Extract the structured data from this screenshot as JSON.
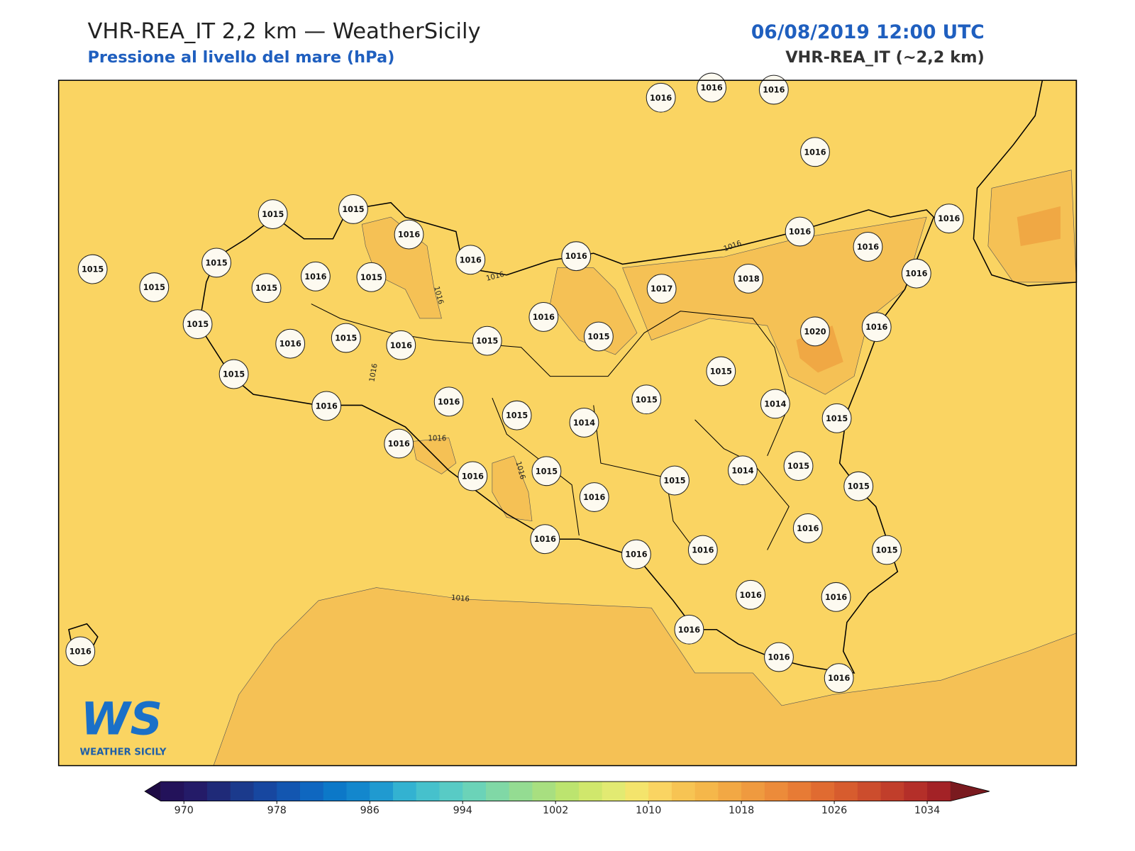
{
  "header": {
    "title": "VHR-REA_IT 2,2 km — WeatherSicily",
    "subtitle": "Pressione al livello del mare (hPa)",
    "datetime": "06/08/2019 12:00 UTC",
    "model": "VHR-REA_IT (~2,2 km)"
  },
  "map": {
    "background": "#fad462",
    "high_area_color": "#f5c155",
    "core_color": "#f0a844",
    "stations": [
      1016,
      1016,
      1016,
      1016,
      1015,
      1015,
      1016,
      1015,
      1015,
      1015,
      1015,
      1016,
      1015,
      1016,
      1016,
      1016,
      1016,
      1016,
      1016,
      1017,
      1018,
      1015,
      1016,
      1015,
      1016,
      1015,
      1016,
      1015,
      1020,
      1016,
      1015,
      1015,
      1016,
      1016,
      1015,
      1014,
      1015,
      1014,
      1015,
      1016,
      1016,
      1015,
      1016,
      1015,
      1014,
      1015,
      1015,
      1016,
      1016,
      1016,
      1016,
      1015,
      1016,
      1016,
      1016,
      1016,
      1016,
      1016
    ],
    "contour_labels": [
      1016,
      1016,
      1016,
      1016,
      1016,
      1016,
      1016
    ]
  },
  "colorbar": {
    "lim": [
      968,
      1036
    ],
    "ticks": [
      970,
      978,
      986,
      994,
      1002,
      1010,
      1018,
      1026,
      1034
    ],
    "colors": [
      "#23125a",
      "#241b68",
      "#1f2a78",
      "#1b3a8c",
      "#1747a0",
      "#1356b0",
      "#0f67c0",
      "#0c78c8",
      "#1387cd",
      "#209ad0",
      "#33b2d1",
      "#46c1cc",
      "#58cbc5",
      "#6bd3b8",
      "#80d8a6",
      "#94dc92",
      "#a8df80",
      "#bce46f",
      "#d0e76c",
      "#e2ea72",
      "#f4e46c",
      "#fad462",
      "#f7c453",
      "#f5b74a",
      "#f2a844",
      "#ef9a3f",
      "#ec8b3a",
      "#e77b35",
      "#e06b31",
      "#d75c2e",
      "#cc4d2d",
      "#c13e2b",
      "#b42f29",
      "#a32226"
    ],
    "under_color": "#1e0b45",
    "over_color": "#7a1a1f"
  },
  "logo": {
    "mark": "WS",
    "name": "WEATHER SICILY"
  }
}
